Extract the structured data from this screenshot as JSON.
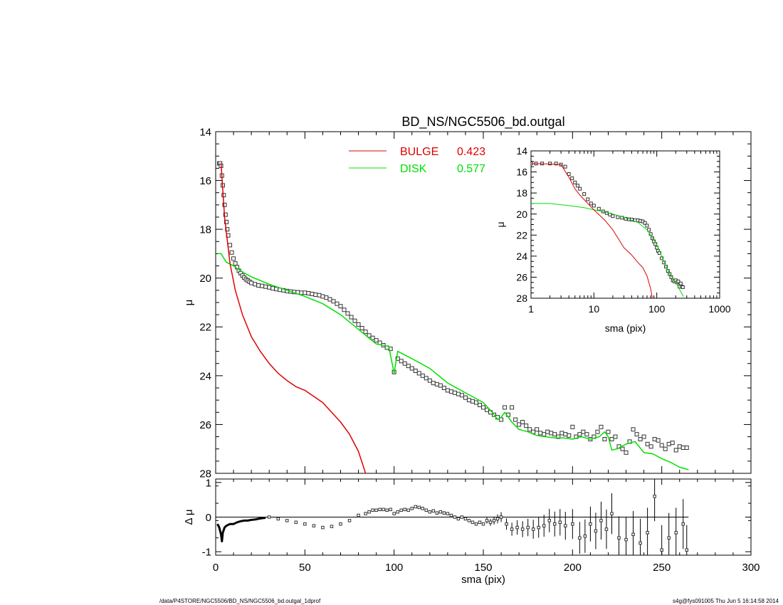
{
  "colors": {
    "bulge": "#e00000",
    "disk": "#00e000",
    "data": "#000000",
    "background": "#ffffff"
  },
  "footer": {
    "left": "/data/P4STORE/NGC5506/BD_NS/NGC5506_bd.outgal_1dprof",
    "right": "s4g@fys091005  Thu Jun  5 16:14:58 2014"
  },
  "chart_data": [
    {
      "type": "line",
      "panel": "main",
      "title": "BD_NS/NGC5506_bd.outgal",
      "xlabel": "",
      "ylabel": "μ",
      "xlim": [
        0,
        300
      ],
      "ylim": [
        28,
        14
      ],
      "y_inverted": true,
      "xticks": [
        0,
        50,
        100,
        150,
        200,
        250,
        300
      ],
      "yticks": [
        14,
        16,
        18,
        20,
        22,
        24,
        26,
        28
      ],
      "legend": [
        {
          "label": "BULGE",
          "value": "0.423",
          "color": "#e00000"
        },
        {
          "label": "DISK",
          "value": "0.577",
          "color": "#00e000"
        }
      ],
      "series": [
        {
          "name": "BULGE",
          "kind": "line",
          "x": [
            3,
            5,
            8,
            11,
            15,
            20,
            25,
            28,
            30,
            35,
            40,
            45,
            50,
            55,
            60,
            65,
            70,
            75,
            80,
            84
          ],
          "y": [
            15.3,
            17.5,
            19.4,
            20.5,
            21.5,
            22.4,
            23.0,
            23.3,
            23.5,
            23.9,
            24.2,
            24.45,
            24.6,
            24.85,
            25.1,
            25.5,
            25.9,
            26.4,
            27.1,
            28.0
          ]
        },
        {
          "name": "DISK",
          "kind": "line",
          "x": [
            1,
            3,
            6,
            10,
            15,
            20,
            30,
            40,
            50,
            60,
            70,
            80,
            90,
            97,
            100,
            102,
            110,
            120,
            130,
            140,
            150,
            155,
            158,
            160,
            162,
            166,
            170,
            175,
            180,
            185,
            190,
            195,
            200,
            205,
            210,
            215,
            218,
            220,
            222,
            225,
            230,
            235,
            240,
            245,
            250,
            255,
            260,
            265
          ],
          "y": [
            19.0,
            19.0,
            19.35,
            19.5,
            19.75,
            19.95,
            20.25,
            20.5,
            20.75,
            21.05,
            21.5,
            22.1,
            22.7,
            22.8,
            23.9,
            23.0,
            23.3,
            23.7,
            24.3,
            24.7,
            25.1,
            25.5,
            25.8,
            25.7,
            25.5,
            25.9,
            26.2,
            26.3,
            26.45,
            26.5,
            26.55,
            26.55,
            26.6,
            26.5,
            26.6,
            26.5,
            26.3,
            26.5,
            27.05,
            27.0,
            26.8,
            26.7,
            27.15,
            27.2,
            27.4,
            27.55,
            27.75,
            27.85
          ]
        },
        {
          "name": "data",
          "kind": "markers",
          "x": [
            2,
            2.5,
            3,
            3.5,
            4,
            4.5,
            5,
            5.5,
            6,
            6.5,
            7,
            8,
            9,
            10,
            11,
            12,
            13,
            14,
            15,
            16,
            17,
            18,
            19,
            20,
            22,
            24,
            26,
            28,
            30,
            32,
            34,
            36,
            38,
            40,
            42,
            44,
            46,
            48,
            50,
            52,
            54,
            56,
            58,
            60,
            62,
            64,
            66,
            68,
            70,
            72,
            74,
            76,
            78,
            80,
            82,
            84,
            86,
            88,
            90,
            92,
            94,
            96,
            98,
            100,
            102,
            104,
            106,
            108,
            110,
            112,
            114,
            116,
            118,
            120,
            122,
            124,
            126,
            128,
            130,
            132,
            134,
            136,
            138,
            140,
            142,
            144,
            146,
            148,
            150,
            152,
            154,
            156,
            158,
            160,
            162,
            164,
            166,
            168,
            170,
            172,
            174,
            176,
            178,
            180,
            182,
            184,
            186,
            188,
            190,
            192,
            194,
            196,
            198,
            200,
            202,
            204,
            206,
            208,
            210,
            212,
            214,
            216,
            218,
            220,
            222,
            224,
            226,
            228,
            230,
            232,
            234,
            236,
            238,
            240,
            242,
            244,
            246,
            248,
            250,
            252,
            254,
            256,
            258,
            260,
            262,
            264
          ],
          "y": [
            15.3,
            15.3,
            15.4,
            15.8,
            16.2,
            16.6,
            17.0,
            17.4,
            17.7,
            18.0,
            18.25,
            18.65,
            18.95,
            19.2,
            19.4,
            19.55,
            19.7,
            19.8,
            19.9,
            19.98,
            20.05,
            20.1,
            20.15,
            20.2,
            20.25,
            20.3,
            20.32,
            20.35,
            20.38,
            20.42,
            20.45,
            20.48,
            20.5,
            20.53,
            20.55,
            20.57,
            20.58,
            20.6,
            20.6,
            20.62,
            20.65,
            20.68,
            20.7,
            20.75,
            20.8,
            20.87,
            20.95,
            21.05,
            21.15,
            21.3,
            21.45,
            21.6,
            21.75,
            21.9,
            22.05,
            22.2,
            22.35,
            22.45,
            22.55,
            22.65,
            22.75,
            22.85,
            22.9,
            23.85,
            23.3,
            23.4,
            23.5,
            23.6,
            23.7,
            23.8,
            23.9,
            24.0,
            24.1,
            24.2,
            24.3,
            24.35,
            24.4,
            24.5,
            24.6,
            24.65,
            24.7,
            24.75,
            24.8,
            24.9,
            25.0,
            25.05,
            25.1,
            25.2,
            25.3,
            25.4,
            25.5,
            25.6,
            25.7,
            25.8,
            25.3,
            25.6,
            25.3,
            25.8,
            26.0,
            25.9,
            26.05,
            26.2,
            26.3,
            26.2,
            26.35,
            26.4,
            26.3,
            26.35,
            26.4,
            26.5,
            26.35,
            26.4,
            26.45,
            26.1,
            26.5,
            26.4,
            26.3,
            26.4,
            26.6,
            26.5,
            26.3,
            26.1,
            26.6,
            26.3,
            26.6,
            26.5,
            26.9,
            27.0,
            27.15,
            26.7,
            26.2,
            26.4,
            26.6,
            26.5,
            26.8,
            26.9,
            26.6,
            26.65,
            26.85,
            27.0,
            26.8,
            26.75,
            27.05,
            26.9,
            26.95,
            26.95
          ]
        }
      ]
    },
    {
      "type": "scatter",
      "panel": "residual",
      "xlabel": "sma (pix)",
      "ylabel": "Δ μ",
      "xlim": [
        0,
        300
      ],
      "ylim": [
        -1.1,
        1.1
      ],
      "xticks": [
        0,
        50,
        100,
        150,
        200,
        250,
        300
      ],
      "yticks": [
        -1,
        0,
        1
      ],
      "zero_line_xlim": [
        0,
        265
      ],
      "series": [
        {
          "name": "residual_dense",
          "kind": "thick-line",
          "x": [
            1,
            2,
            3,
            3.5,
            4,
            5,
            6,
            8,
            10,
            12,
            14,
            16,
            18,
            20,
            22,
            24,
            26,
            28
          ],
          "y": [
            -0.2,
            -0.3,
            -0.5,
            -0.7,
            -0.45,
            -0.3,
            -0.25,
            -0.2,
            -0.2,
            -0.15,
            -0.12,
            -0.1,
            -0.1,
            -0.08,
            -0.07,
            -0.05,
            -0.03,
            -0.02
          ]
        },
        {
          "name": "residual",
          "kind": "markers",
          "x": [
            30,
            35,
            40,
            45,
            50,
            55,
            60,
            65,
            70,
            75,
            80,
            84,
            86,
            88,
            90,
            92,
            94,
            96,
            98,
            100,
            102,
            104,
            106,
            108,
            110,
            112,
            114,
            116,
            118,
            120,
            122,
            124,
            126,
            128,
            130,
            132,
            134,
            136,
            138,
            140,
            142,
            144,
            146,
            148,
            150,
            152,
            154,
            156,
            158,
            160,
            163,
            166,
            169,
            172,
            175,
            178,
            181,
            184,
            187,
            190,
            193,
            196,
            200,
            204,
            207,
            210,
            213,
            216,
            219,
            222,
            226,
            230,
            234,
            238,
            242,
            246,
            250,
            254,
            258,
            262,
            264
          ],
          "y": [
            0.0,
            -0.05,
            -0.1,
            -0.15,
            -0.2,
            -0.25,
            -0.3,
            -0.27,
            -0.2,
            -0.1,
            0.05,
            0.1,
            0.15,
            0.2,
            0.2,
            0.22,
            0.22,
            0.2,
            0.22,
            0.1,
            0.15,
            0.2,
            0.22,
            0.2,
            0.25,
            0.3,
            0.28,
            0.25,
            0.2,
            0.15,
            0.18,
            0.12,
            0.15,
            0.12,
            0.1,
            0.05,
            0.0,
            -0.05,
            0.0,
            -0.05,
            -0.1,
            -0.15,
            -0.2,
            -0.15,
            -0.2,
            -0.1,
            -0.15,
            -0.1,
            -0.05,
            0.0,
            -0.2,
            -0.35,
            -0.3,
            -0.35,
            -0.3,
            -0.35,
            -0.3,
            -0.25,
            -0.1,
            -0.2,
            -0.15,
            -0.25,
            -0.2,
            -0.6,
            -0.55,
            -0.2,
            -0.4,
            -0.1,
            -0.35,
            0.1,
            -0.6,
            -0.65,
            -0.5,
            -0.75,
            -0.45,
            0.6,
            -0.95,
            -0.6,
            -0.45,
            -0.2,
            -0.95
          ]
        }
      ]
    },
    {
      "type": "line",
      "panel": "inset",
      "xlabel": "sma (pix)",
      "ylabel": "μ",
      "xscale": "log",
      "xlim": [
        1,
        1000
      ],
      "ylim": [
        28,
        14
      ],
      "y_inverted": true,
      "xticks": [
        1,
        10,
        100,
        1000
      ],
      "xtick_labels": [
        "1",
        "10",
        "100",
        "1000"
      ],
      "yticks": [
        14,
        16,
        18,
        20,
        22,
        24,
        26,
        28
      ],
      "series": [
        {
          "name": "BULGE",
          "kind": "line",
          "x": [
            1,
            2,
            3,
            4,
            5,
            6,
            8,
            10,
            15,
            20,
            30,
            40,
            50,
            60,
            70,
            80,
            85
          ],
          "y": [
            15.2,
            15.25,
            15.3,
            16.5,
            17.6,
            18.2,
            19.0,
            19.6,
            20.6,
            21.5,
            23.2,
            23.9,
            24.6,
            25.1,
            25.9,
            27.1,
            28.0
          ]
        },
        {
          "name": "DISK",
          "kind": "line",
          "x": [
            1,
            2,
            4,
            7,
            10,
            15,
            20,
            30,
            50,
            70,
            100,
            130,
            160,
            200,
            265
          ],
          "y": [
            19.0,
            19.0,
            19.2,
            19.4,
            19.6,
            19.8,
            20.0,
            20.3,
            20.8,
            21.5,
            22.9,
            24.5,
            25.7,
            26.5,
            27.85
          ]
        },
        {
          "name": "data",
          "kind": "markers",
          "x": [
            1,
            1.2,
            1.5,
            2,
            2.5,
            3,
            3.5,
            4,
            4.5,
            5,
            5.5,
            6,
            7,
            8,
            9,
            10,
            12,
            14,
            16,
            18,
            20,
            24,
            28,
            32,
            36,
            40,
            45,
            50,
            55,
            60,
            65,
            70,
            75,
            80,
            85,
            90,
            95,
            100,
            105,
            110,
            120,
            130,
            140,
            150,
            160,
            170,
            180,
            190,
            200,
            210,
            220,
            230,
            240,
            250,
            260
          ],
          "y": [
            15.2,
            15.2,
            15.2,
            15.2,
            15.2,
            15.3,
            15.5,
            16.2,
            16.6,
            17.0,
            17.3,
            17.6,
            18.1,
            18.6,
            19.0,
            19.2,
            19.5,
            19.75,
            19.9,
            20.05,
            20.2,
            20.3,
            20.35,
            20.45,
            20.5,
            20.53,
            20.58,
            20.6,
            20.65,
            20.7,
            20.85,
            21.1,
            21.5,
            21.9,
            22.3,
            22.6,
            22.85,
            23.2,
            23.5,
            23.7,
            24.2,
            24.6,
            25.0,
            25.4,
            25.7,
            26.0,
            26.3,
            26.4,
            26.3,
            26.5,
            26.4,
            26.9,
            26.6,
            26.9,
            26.95
          ]
        }
      ]
    }
  ]
}
